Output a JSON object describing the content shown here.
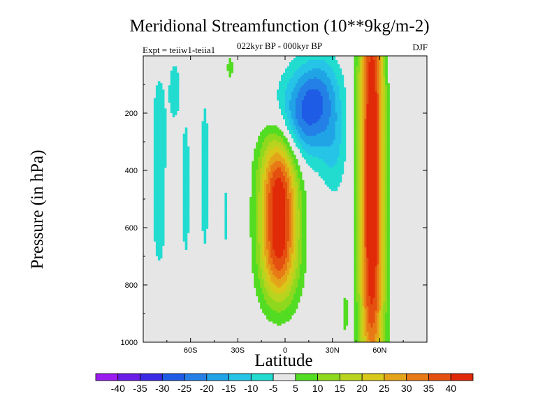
{
  "chart_data": {
    "type": "contour",
    "title": "Meridional Streamfunction (10**9kg/m-2)",
    "subtitle": "022kyr BP - 000kyr BP",
    "left_string": "Expt = teiiw1-teiia1",
    "right_string": "DJF",
    "xlabel": "Latitude",
    "ylabel": "Pressure (in hPa)",
    "x_ticks": [
      "60S",
      "30S",
      "0",
      "30N",
      "60N"
    ],
    "x_tick_values": [
      -60,
      -30,
      0,
      30,
      60
    ],
    "xlim": [
      -90,
      90
    ],
    "y_ticks": [
      "200",
      "400",
      "600",
      "800",
      "1000"
    ],
    "y_tick_values": [
      200,
      400,
      600,
      800,
      1000
    ],
    "ylim": [
      0,
      1000
    ],
    "y_inverted": true,
    "contour_levels": [
      -40,
      -35,
      -30,
      -25,
      -20,
      -15,
      -10,
      -5,
      5,
      10,
      15,
      20,
      25,
      30,
      35,
      40
    ],
    "colorbar": {
      "labels": [
        "-40",
        "-35",
        "-30",
        "-25",
        "-20",
        "-15",
        "-10",
        "-5",
        "5",
        "10",
        "15",
        "20",
        "25",
        "30",
        "35",
        "40"
      ],
      "colors": [
        "#9b1cf0",
        "#6a1ee8",
        "#3a2ae6",
        "#1e5ce6",
        "#2480e6",
        "#20a4e6",
        "#26c4e6",
        "#22dcd0",
        "#e6e6e6",
        "#52dc22",
        "#8ed81e",
        "#b8d41e",
        "#d8c81a",
        "#e4a41a",
        "#e87a16",
        "#e45010",
        "#e02a08"
      ]
    },
    "background_color": "#e6e6e6",
    "features": [
      {
        "sign": "positive",
        "peak": 40,
        "lat_range": [
          -15,
          12
        ],
        "pressure_range": [
          290,
          970
        ]
      },
      {
        "sign": "positive",
        "peak": 40,
        "lat_range": [
          45,
          65
        ],
        "pressure_range": [
          0,
          970
        ]
      },
      {
        "sign": "negative",
        "peak": -20,
        "lat_range": [
          0,
          45
        ],
        "pressure_range": [
          0,
          420
        ]
      },
      {
        "sign": "negative",
        "peak": -5,
        "lat_range": [
          -85,
          -20
        ],
        "pressure_range": [
          0,
          900
        ]
      }
    ]
  }
}
